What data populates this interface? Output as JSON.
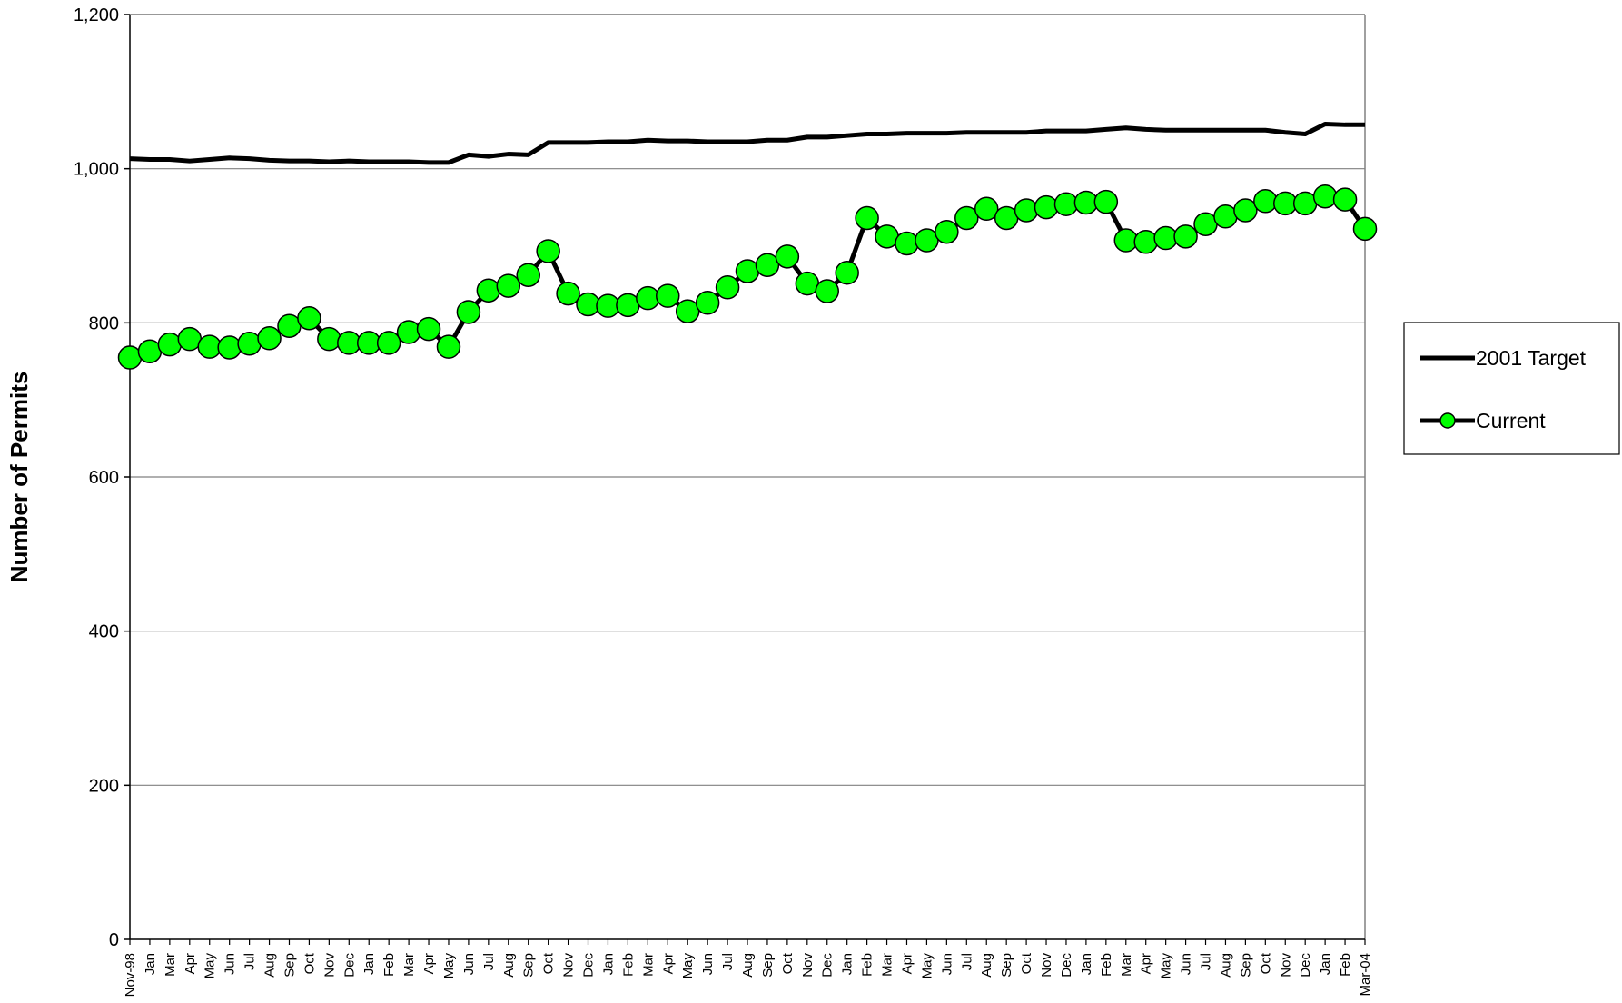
{
  "chart_data": {
    "type": "line",
    "y_label": "Number of Permits",
    "categories": [
      "Nov-98",
      "Jan",
      "Mar",
      "Apr",
      "May",
      "Jun",
      "Jul",
      "Aug",
      "Sep",
      "Oct",
      "Nov",
      "Dec",
      "Jan",
      "Feb",
      "Mar",
      "Apr",
      "May",
      "Jun",
      "Jul",
      "Aug",
      "Sep",
      "Oct",
      "Nov",
      "Dec",
      "Jan",
      "Feb",
      "Mar",
      "Apr",
      "May",
      "Jun",
      "Jul",
      "Aug",
      "Sep",
      "Oct",
      "Nov",
      "Dec",
      "Jan",
      "Feb",
      "Mar",
      "Apr",
      "May",
      "Jun",
      "Jul",
      "Aug",
      "Sep",
      "Oct",
      "Nov",
      "Dec",
      "Jan",
      "Feb",
      "Mar",
      "Apr",
      "May",
      "Jun",
      "Jul",
      "Aug",
      "Sep",
      "Oct",
      "Nov",
      "Dec",
      "Jan",
      "Feb",
      "Mar-04"
    ],
    "series": [
      {
        "name": "2001 Target",
        "color": "#000000",
        "marker": false,
        "values": [
          1013,
          1012,
          1012,
          1010,
          1012,
          1014,
          1013,
          1011,
          1010,
          1010,
          1009,
          1010,
          1009,
          1009,
          1009,
          1008,
          1008,
          1018,
          1016,
          1019,
          1018,
          1034,
          1034,
          1034,
          1035,
          1035,
          1037,
          1036,
          1036,
          1035,
          1035,
          1035,
          1037,
          1037,
          1041,
          1041,
          1043,
          1045,
          1045,
          1046,
          1046,
          1046,
          1047,
          1047,
          1047,
          1047,
          1049,
          1049,
          1049,
          1051,
          1053,
          1051,
          1050,
          1050,
          1050,
          1050,
          1050,
          1050,
          1047,
          1045,
          1058,
          1057,
          1057
        ]
      },
      {
        "name": "Current",
        "color": "#00ff00",
        "marker": true,
        "values": [
          755,
          763,
          772,
          779,
          769,
          768,
          773,
          780,
          796,
          806,
          779,
          774,
          774,
          774,
          788,
          792,
          769,
          814,
          842,
          848,
          862,
          893,
          838,
          824,
          822,
          823,
          832,
          835,
          815,
          826,
          846,
          867,
          875,
          886,
          851,
          841,
          865,
          936,
          912,
          903,
          907,
          918,
          936,
          948,
          936,
          946,
          950,
          954,
          956,
          957,
          907,
          905,
          910,
          912,
          928,
          938,
          946,
          958,
          955,
          955,
          964,
          960,
          922
        ]
      }
    ],
    "ylim": [
      0,
      1200
    ],
    "yticks": [
      0,
      200,
      400,
      600,
      800,
      {
        "value": 1000,
        "label": "1,000"
      },
      {
        "value": 1200,
        "label": "1,200"
      }
    ],
    "grid": true,
    "legend": "right"
  }
}
